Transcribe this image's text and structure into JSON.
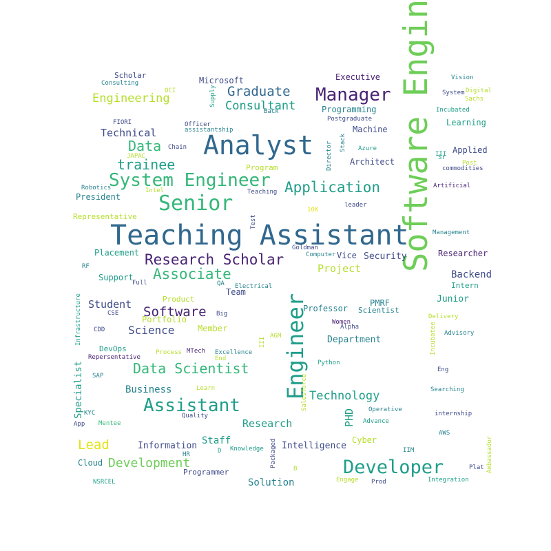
{
  "palette": {
    "purple": "#482374",
    "indigo": "#3e4a89",
    "blue": "#31688e",
    "teal": "#26828e",
    "green": "#1f9e89",
    "lightgreen": "#35b779",
    "lime": "#6ece58",
    "yellowgreen": "#b5de2b",
    "yellow": "#e3e418"
  },
  "words": [
    {
      "text": "Teaching Assistant"
    },
    {
      "text": "Software Engineer"
    },
    {
      "text": "Analyst"
    },
    {
      "text": "Engineer"
    },
    {
      "text": "System Engineer"
    },
    {
      "text": "Senior"
    },
    {
      "text": "Manager"
    },
    {
      "text": "Developer"
    },
    {
      "text": "Research Scholar"
    },
    {
      "text": "Assistant"
    },
    {
      "text": "Data Scientist"
    },
    {
      "text": "Application"
    },
    {
      "text": "Associate"
    },
    {
      "text": "Software"
    },
    {
      "text": "trainee"
    },
    {
      "text": "Graduate"
    },
    {
      "text": "Consultant"
    },
    {
      "text": "Data"
    },
    {
      "text": "Development"
    },
    {
      "text": "Engineering"
    },
    {
      "text": "Technology"
    },
    {
      "text": "Lead"
    },
    {
      "text": "Technical"
    },
    {
      "text": "Project"
    },
    {
      "text": "Science"
    },
    {
      "text": "Student"
    },
    {
      "text": "Research"
    },
    {
      "text": "Business"
    },
    {
      "text": "Solution"
    },
    {
      "text": "Staff"
    },
    {
      "text": "Information"
    },
    {
      "text": "Intelligence"
    },
    {
      "text": "Security"
    },
    {
      "text": "Specialist"
    },
    {
      "text": "PHD"
    },
    {
      "text": "Backend"
    },
    {
      "text": "Junior"
    },
    {
      "text": "Department"
    },
    {
      "text": "Researcher"
    },
    {
      "text": "Executive"
    },
    {
      "text": "Microsoft"
    },
    {
      "text": "Scholar"
    },
    {
      "text": "Programming"
    },
    {
      "text": "Machine"
    },
    {
      "text": "Learning"
    },
    {
      "text": "Applied"
    },
    {
      "text": "Architect"
    },
    {
      "text": "Professor"
    },
    {
      "text": "Product"
    },
    {
      "text": "Portfolio"
    },
    {
      "text": "Member"
    },
    {
      "text": "Team"
    },
    {
      "text": "Placement"
    },
    {
      "text": "Support"
    },
    {
      "text": "President"
    },
    {
      "text": "Cloud"
    },
    {
      "text": "Programmer"
    },
    {
      "text": "Cyber"
    },
    {
      "text": "Intern"
    },
    {
      "text": "Vice"
    },
    {
      "text": "Scientist"
    },
    {
      "text": "PMRF"
    },
    {
      "text": "DevOps"
    },
    {
      "text": "Representative"
    },
    {
      "text": "Program"
    },
    {
      "text": "Officer"
    },
    {
      "text": "assistantship"
    },
    {
      "text": "Chain"
    },
    {
      "text": "Director"
    },
    {
      "text": "Stack"
    },
    {
      "text": "Azure"
    },
    {
      "text": "Supply"
    },
    {
      "text": "OCI"
    },
    {
      "text": "Consulting"
    },
    {
      "text": "FIORI"
    },
    {
      "text": "JAPAC"
    },
    {
      "text": "Robotics"
    },
    {
      "text": "Intel"
    },
    {
      "text": "Teaching"
    },
    {
      "text": "Back"
    },
    {
      "text": "Postgraduate"
    },
    {
      "text": "Vision"
    },
    {
      "text": "System"
    },
    {
      "text": "Digital"
    },
    {
      "text": "Sachs"
    },
    {
      "text": "Incubated"
    },
    {
      "text": "III"
    },
    {
      "text": "Sr"
    },
    {
      "text": "Post"
    },
    {
      "text": "commodities"
    },
    {
      "text": "Artificial"
    },
    {
      "text": "leader"
    },
    {
      "text": "10K"
    },
    {
      "text": "Test"
    },
    {
      "text": "Management"
    },
    {
      "text": "Goldman"
    },
    {
      "text": "Computer"
    },
    {
      "text": "RF"
    },
    {
      "text": "Full"
    },
    {
      "text": "QA"
    },
    {
      "text": "Electrical"
    },
    {
      "text": "Big"
    },
    {
      "text": "Infrastructure"
    },
    {
      "text": "CSE"
    },
    {
      "text": "CDD"
    },
    {
      "text": "Women"
    },
    {
      "text": "Alpha"
    },
    {
      "text": "Delivery"
    },
    {
      "text": "Advisory"
    },
    {
      "text": "AGM"
    },
    {
      "text": "III"
    },
    {
      "text": "Repersentative"
    },
    {
      "text": "Process"
    },
    {
      "text": "MTech"
    },
    {
      "text": "Excellence"
    },
    {
      "text": "End"
    },
    {
      "text": "Python"
    },
    {
      "text": "Incubatee"
    },
    {
      "text": "Eng"
    },
    {
      "text": "SAP"
    },
    {
      "text": "Searching"
    },
    {
      "text": "Learn"
    },
    {
      "text": "Salesforce"
    },
    {
      "text": "KYC"
    },
    {
      "text": "Operative"
    },
    {
      "text": "internship"
    },
    {
      "text": "App"
    },
    {
      "text": "Mentee"
    },
    {
      "text": "Quality"
    },
    {
      "text": "Advance"
    },
    {
      "text": "AWS"
    },
    {
      "text": "HR"
    },
    {
      "text": "D"
    },
    {
      "text": "Knowledge"
    },
    {
      "text": "Packaged"
    },
    {
      "text": "IIM"
    },
    {
      "text": "B"
    },
    {
      "text": "Plat"
    },
    {
      "text": "Ambassador"
    },
    {
      "text": "NSRCEL"
    },
    {
      "text": "Engage"
    },
    {
      "text": "Prod"
    },
    {
      "text": "Integration"
    }
  ]
}
